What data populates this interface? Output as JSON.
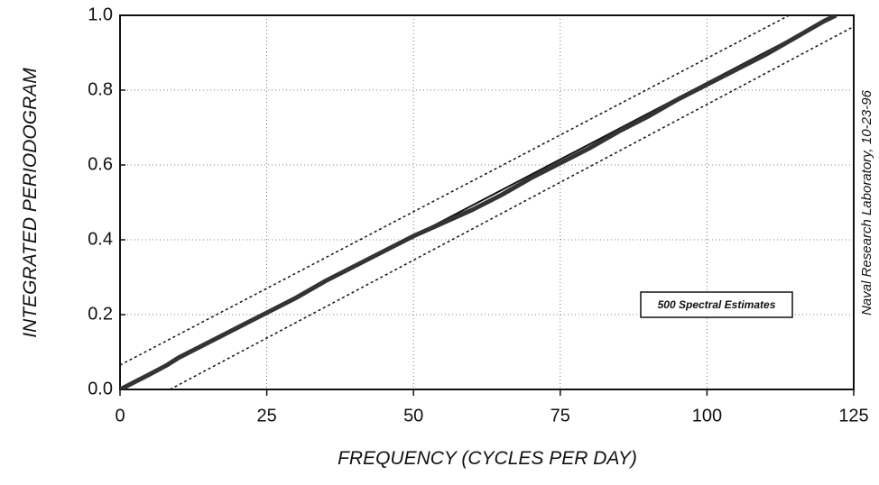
{
  "chart_data": {
    "type": "line",
    "xlabel": "FREQUENCY (CYCLES PER DAY)",
    "ylabel": "INTEGRATED PERIODOGRAM",
    "annotations": [
      "500 Spectral Estimates",
      "Naval Research Laboratory, 10-23-96"
    ],
    "xlim": [
      0,
      125
    ],
    "xticks": [
      0,
      25,
      50,
      75,
      100,
      125
    ],
    "ylim": [
      0,
      1.0
    ],
    "yticks": [
      {
        "value": 0,
        "label": "0.0"
      },
      0.2,
      0.4,
      0.6,
      0.8,
      {
        "value": 1.0,
        "label": "1.0"
      }
    ],
    "grid": true,
    "series": [
      {
        "color": "#111111",
        "dashed": false,
        "width": 2,
        "x": [
          0,
          122
        ],
        "values": [
          0,
          1.0
        ]
      },
      {
        "color": "#111111",
        "dashed": true,
        "width": 1.5,
        "x": [
          0,
          114
        ],
        "values": [
          0.065,
          1.0
        ]
      },
      {
        "color": "#111111",
        "dashed": true,
        "width": 1.5,
        "x": [
          8.5,
          125
        ],
        "values": [
          0,
          0.97
        ]
      },
      {
        "color": "#333333",
        "dashed": false,
        "width": 5,
        "x": [
          0,
          5,
          8,
          10,
          15,
          20,
          25,
          30,
          35,
          40,
          45,
          50,
          55,
          60,
          65,
          70,
          75,
          80,
          85,
          90,
          95,
          100,
          105,
          110,
          115,
          120,
          122
        ],
        "values": [
          0,
          0.04,
          0.065,
          0.085,
          0.125,
          0.165,
          0.205,
          0.245,
          0.29,
          0.33,
          0.37,
          0.41,
          0.445,
          0.48,
          0.52,
          0.565,
          0.605,
          0.645,
          0.69,
          0.73,
          0.775,
          0.815,
          0.855,
          0.895,
          0.94,
          0.985,
          1.0
        ]
      }
    ]
  }
}
